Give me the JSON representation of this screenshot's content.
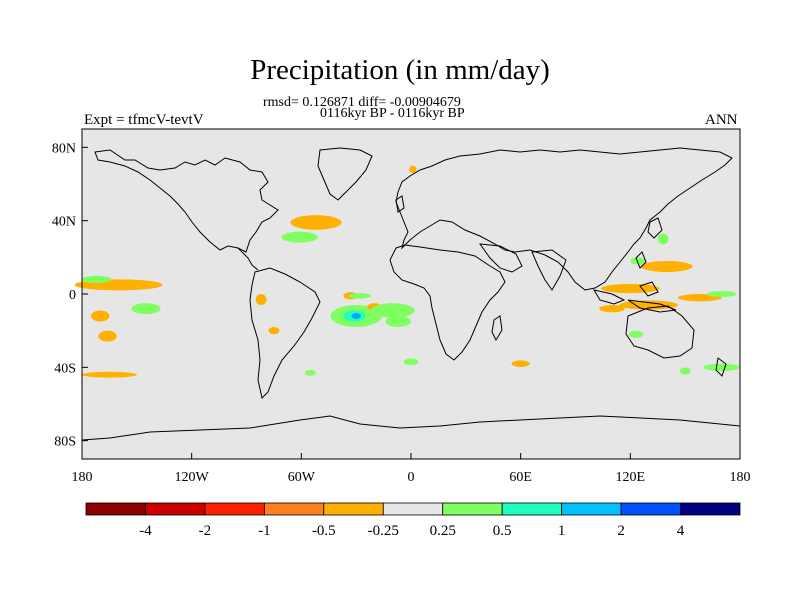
{
  "title": "Precipitation (in mm/day)",
  "stats_line": "rmsd= 0.126871  diff= -0.00904679",
  "subtitle": "0116kyr BP - 0116kyr BP",
  "left_label": "Expt = tfmcV-tevtV",
  "right_label": "ANN",
  "map": {
    "projection": "cylindrical-equidistant",
    "lon_range": [
      -180,
      180
    ],
    "lat_range": [
      -90,
      90
    ],
    "background_color": "#e6e6e6",
    "y_ticks": [
      {
        "label": "80N",
        "lat": 80
      },
      {
        "label": "40N",
        "lat": 40
      },
      {
        "label": "0",
        "lat": 0
      },
      {
        "label": "40S",
        "lat": -40
      },
      {
        "label": "80S",
        "lat": -80
      }
    ],
    "x_ticks": [
      {
        "label": "180",
        "lon": -180
      },
      {
        "label": "120W",
        "lon": -120
      },
      {
        "label": "60W",
        "lon": -60
      },
      {
        "label": "0",
        "lon": 0
      },
      {
        "label": "60E",
        "lon": 60
      },
      {
        "label": "120E",
        "lon": 120
      },
      {
        "label": "180",
        "lon": 180
      }
    ],
    "anomaly_patches": [
      {
        "lon": -47,
        "lat": 40,
        "rx": 6,
        "ry": 2.5,
        "color": "#ff2000"
      },
      {
        "lon": -52,
        "lat": 39,
        "rx": 14,
        "ry": 4,
        "color": "#ffb000"
      },
      {
        "lon": -61,
        "lat": 31,
        "rx": 10,
        "ry": 3,
        "color": "#80ff60"
      },
      {
        "lon": -160,
        "lat": 5,
        "rx": 24,
        "ry": 3,
        "color": "#ffb000"
      },
      {
        "lon": -172,
        "lat": 8,
        "rx": 8,
        "ry": 2,
        "color": "#80ff60"
      },
      {
        "lon": -145,
        "lat": -8,
        "rx": 8,
        "ry": 3,
        "color": "#80ff60"
      },
      {
        "lon": -170,
        "lat": -12,
        "rx": 5,
        "ry": 3,
        "color": "#ffb000"
      },
      {
        "lon": -166,
        "lat": -23,
        "rx": 5,
        "ry": 3,
        "color": "#ffb000"
      },
      {
        "lon": -165,
        "lat": -44,
        "rx": 15,
        "ry": 1.6,
        "color": "#ffb000"
      },
      {
        "lon": -82,
        "lat": -3,
        "rx": 3,
        "ry": 3,
        "color": "#ffb000"
      },
      {
        "lon": -30,
        "lat": -12,
        "rx": 14,
        "ry": 6,
        "color": "#80ff60"
      },
      {
        "lon": -31,
        "lat": -12,
        "rx": 6,
        "ry": 3,
        "color": "#20ffc0"
      },
      {
        "lon": -30,
        "lat": -12,
        "rx": 2.5,
        "ry": 1.5,
        "color": "#00a0ff"
      },
      {
        "lon": -33,
        "lat": -1,
        "rx": 4,
        "ry": 2,
        "color": "#ffb000"
      },
      {
        "lon": -20,
        "lat": -7,
        "rx": 4,
        "ry": 2,
        "color": "#ffb000"
      },
      {
        "lon": -28,
        "lat": -1,
        "rx": 6,
        "ry": 1.5,
        "color": "#80ff60"
      },
      {
        "lon": -10,
        "lat": -9,
        "rx": 12,
        "ry": 4,
        "color": "#80ff60"
      },
      {
        "lon": -7,
        "lat": -15,
        "rx": 7,
        "ry": 3,
        "color": "#80ff60"
      },
      {
        "lon": 0,
        "lat": -37,
        "rx": 4,
        "ry": 1.8,
        "color": "#80ff60"
      },
      {
        "lon": -55,
        "lat": -43,
        "rx": 3,
        "ry": 1.6,
        "color": "#80ff60"
      },
      {
        "lon": 1,
        "lat": 68,
        "rx": 2,
        "ry": 2,
        "color": "#ffb000"
      },
      {
        "lon": 138,
        "lat": 30,
        "rx": 3,
        "ry": 3,
        "color": "#80ff60"
      },
      {
        "lon": 140,
        "lat": 15,
        "rx": 14,
        "ry": 3,
        "color": "#ffb000"
      },
      {
        "lon": 124,
        "lat": 18,
        "rx": 4,
        "ry": 2,
        "color": "#80ff60"
      },
      {
        "lon": 120,
        "lat": 3,
        "rx": 16,
        "ry": 2.5,
        "color": "#ffb000"
      },
      {
        "lon": 130,
        "lat": -6,
        "rx": 16,
        "ry": 2.5,
        "color": "#ffb000"
      },
      {
        "lon": 110,
        "lat": -8,
        "rx": 7,
        "ry": 2,
        "color": "#ffb000"
      },
      {
        "lon": 158,
        "lat": -2,
        "rx": 12,
        "ry": 2,
        "color": "#ffb000"
      },
      {
        "lon": 170,
        "lat": 0,
        "rx": 8,
        "ry": 1.6,
        "color": "#80ff60"
      },
      {
        "lon": 170,
        "lat": -40,
        "rx": 10,
        "ry": 2,
        "color": "#80ff60"
      },
      {
        "lon": 150,
        "lat": -42,
        "rx": 3,
        "ry": 2,
        "color": "#80ff60"
      },
      {
        "lon": 123,
        "lat": -22,
        "rx": 4,
        "ry": 2,
        "color": "#80ff60"
      },
      {
        "lon": 60,
        "lat": -38,
        "rx": 5,
        "ry": 1.8,
        "color": "#ffb000"
      },
      {
        "lon": -75,
        "lat": -20,
        "rx": 3,
        "ry": 2,
        "color": "#ffb000"
      }
    ]
  },
  "colorbar": {
    "colors": [
      "#8b0000",
      "#cd0000",
      "#ff2000",
      "#ff7f20",
      "#ffb000",
      "#e6e6e6",
      "#80ff60",
      "#20ffc0",
      "#00c0ff",
      "#0050ff",
      "#000080"
    ],
    "labels": [
      "-4",
      "-2",
      "-1",
      "-0.5",
      "-0.25",
      "0.25",
      "0.5",
      "1",
      "2",
      "4"
    ]
  }
}
